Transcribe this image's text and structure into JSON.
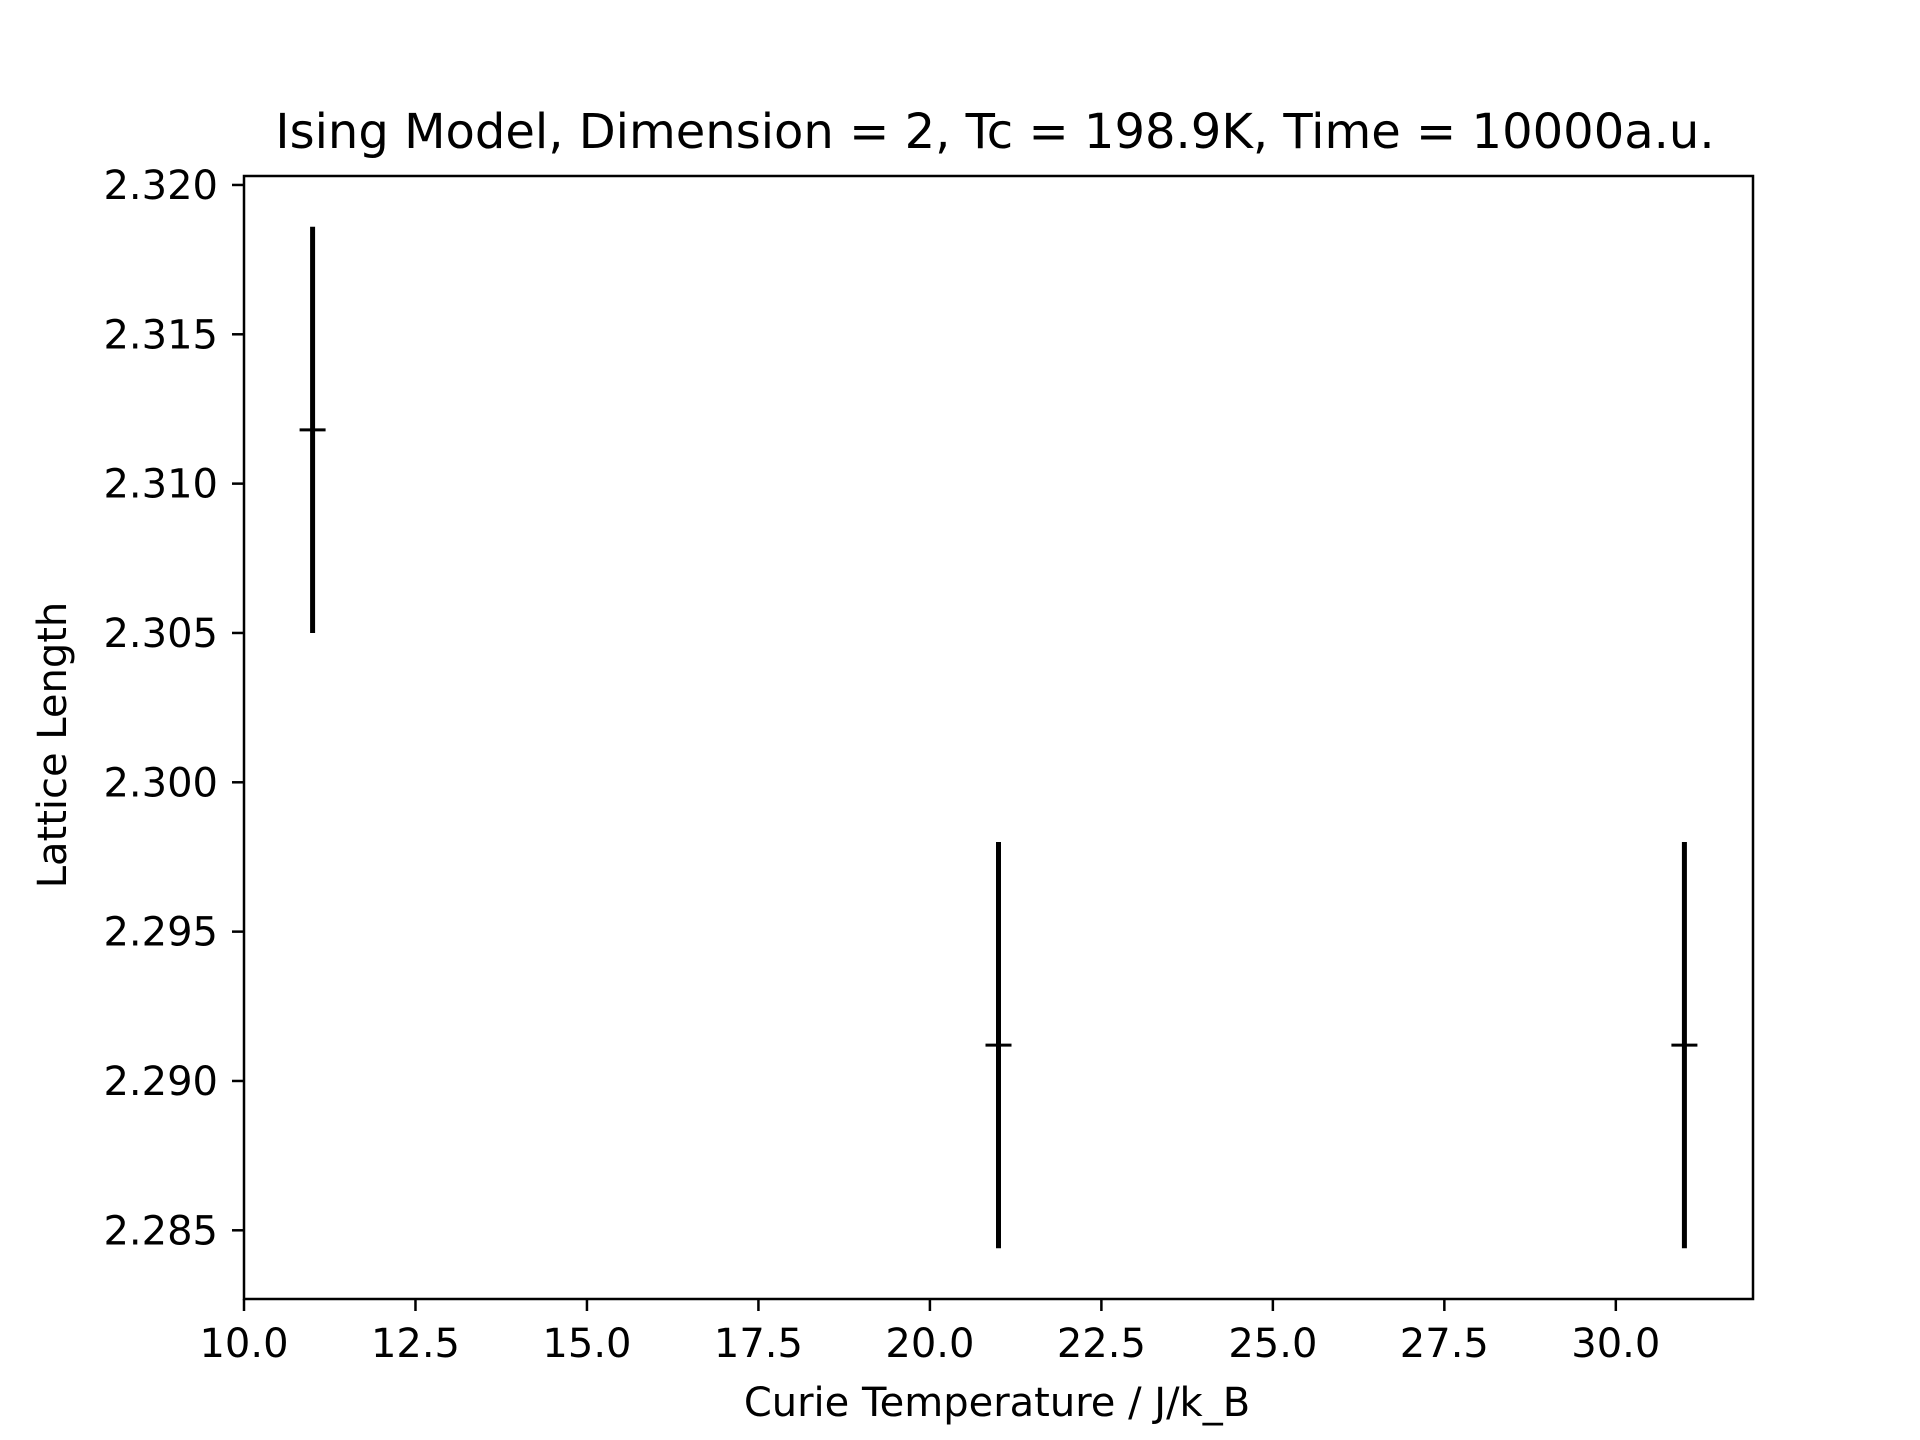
{
  "chart_data": {
    "type": "scatter",
    "title": "Ising Model, Dimension = 2, Tc = 198.9K, Time = 10000a.u.",
    "xlabel": "Curie Temperature / J/k_B",
    "ylabel": "Lattice Length",
    "xlim": [
      10.0,
      32.0
    ],
    "ylim": [
      2.2827,
      2.3203
    ],
    "xticks": [
      "10.0",
      "12.5",
      "15.0",
      "17.5",
      "20.0",
      "22.5",
      "25.0",
      "27.5",
      "30.0"
    ],
    "yticks": [
      "2.285",
      "2.290",
      "2.295",
      "2.300",
      "2.305",
      "2.310",
      "2.315",
      "2.320"
    ],
    "grid": false,
    "legend": "none",
    "series": [
      {
        "marker": "+",
        "color": "#000000",
        "points": [
          {
            "x": 11.0,
            "y": 2.3118,
            "yerr": 0.0068
          },
          {
            "x": 21.0,
            "y": 2.2912,
            "yerr": 0.0068
          },
          {
            "x": 31.0,
            "y": 2.2912,
            "yerr": 0.0068
          }
        ]
      }
    ]
  }
}
